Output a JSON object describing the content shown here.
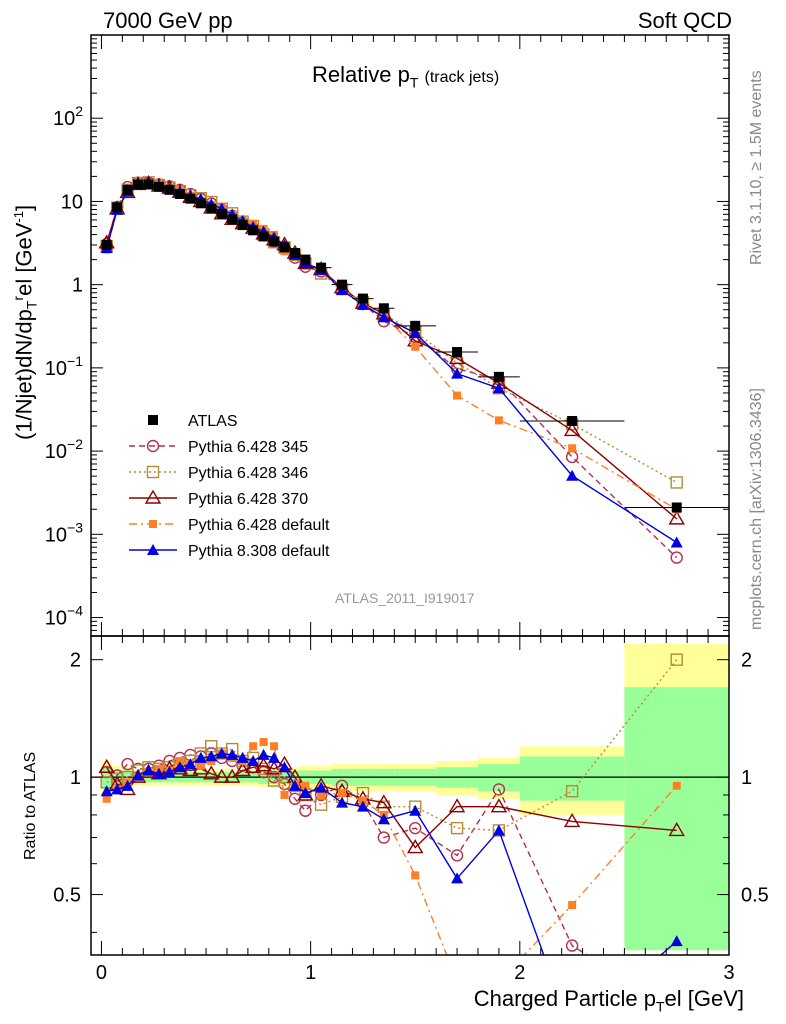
{
  "header": {
    "left": "7000 GeV pp",
    "right": "Soft QCD"
  },
  "title": {
    "main": "Relative p",
    "sub_T": "T",
    "note": "(track jets)"
  },
  "side_labels": {
    "rivet": "Rivet 3.1.10, ≥ 1.5M events",
    "mcplots": "mcplots.cern.ch [arXiv:1306.3436]"
  },
  "analysis": "ATLAS_2011_I919017",
  "axes": {
    "ylabel_top": "(1/Njet)dN/dp",
    "ylabel_bottom": "Ratio to ATLAS",
    "xlabel": "Charged Particle p",
    "xlabel_tail": "el [GeV]"
  },
  "colors": {
    "ATLAS": "#000000",
    "p345": "#b03050",
    "p346": "#b58a3a",
    "p370": "#8b0000",
    "p6def": "#ff7f24",
    "p8def": "#0000e0",
    "band_yellow": "#ffff99",
    "band_green": "#99ff99"
  },
  "chart_data": {
    "type": "line",
    "xlim": [
      -0.05,
      3.0
    ],
    "ylim_top": [
      6e-05,
      1000
    ],
    "ylim_bottom": [
      0.35,
      2.3
    ],
    "log_y_top": true,
    "x_ticks": [
      0,
      1,
      2,
      3
    ],
    "y_ticks_top": [
      "10^{-4}",
      "10^{-3}",
      "10^{-2}",
      "10^{-1}",
      "1",
      "10",
      "10^{2}"
    ],
    "y_ticks_bottom": [
      "0.5",
      "1",
      "2"
    ],
    "x": [
      0.025,
      0.075,
      0.125,
      0.175,
      0.225,
      0.275,
      0.325,
      0.375,
      0.425,
      0.475,
      0.525,
      0.575,
      0.625,
      0.675,
      0.725,
      0.775,
      0.825,
      0.875,
      0.925,
      0.975,
      1.05,
      1.15,
      1.25,
      1.35,
      1.5,
      1.7,
      1.9,
      2.25,
      2.75
    ],
    "bin_edges": [
      0,
      0.05,
      0.1,
      0.15,
      0.2,
      0.25,
      0.3,
      0.35,
      0.4,
      0.45,
      0.5,
      0.55,
      0.6,
      0.65,
      0.7,
      0.75,
      0.8,
      0.85,
      0.9,
      0.95,
      1.0,
      1.1,
      1.2,
      1.3,
      1.4,
      1.6,
      1.8,
      2.0,
      2.5,
      3.0
    ],
    "atlas": [
      3.0,
      8.5,
      13.8,
      16.0,
      16.0,
      15.0,
      13.8,
      12.3,
      10.8,
      9.5,
      8.2,
      7.1,
      6.1,
      5.2,
      4.5,
      3.8,
      3.3,
      2.8,
      2.4,
      2.0,
      1.6,
      1.0,
      0.68,
      0.52,
      0.32,
      0.155,
      0.078,
      0.023,
      0.0021
    ],
    "band_yellow": [
      0.1,
      0.07,
      0.06,
      0.05,
      0.05,
      0.05,
      0.05,
      0.05,
      0.05,
      0.05,
      0.05,
      0.05,
      0.05,
      0.05,
      0.05,
      0.06,
      0.06,
      0.06,
      0.06,
      0.07,
      0.07,
      0.08,
      0.08,
      0.08,
      0.08,
      0.1,
      0.12,
      0.2,
      1.2
    ],
    "band_green": [
      0.06,
      0.04,
      0.04,
      0.03,
      0.03,
      0.03,
      0.03,
      0.03,
      0.03,
      0.03,
      0.03,
      0.03,
      0.03,
      0.03,
      0.03,
      0.04,
      0.04,
      0.04,
      0.04,
      0.04,
      0.04,
      0.05,
      0.05,
      0.05,
      0.05,
      0.06,
      0.08,
      0.13,
      0.7
    ],
    "series": [
      {
        "name": "Pythia 6.428 345",
        "key": "p345",
        "style": "dashed",
        "marker": "circle-open",
        "ratio": [
          1.03,
          1.01,
          1.08,
          1.05,
          1.05,
          1.07,
          1.1,
          1.12,
          1.14,
          1.13,
          1.15,
          1.12,
          1.1,
          1.07,
          1.06,
          1.03,
          1.0,
          0.96,
          0.88,
          0.82,
          0.9,
          0.95,
          0.86,
          0.7,
          0.74,
          0.63,
          0.93,
          0.37,
          0.25
        ]
      },
      {
        "name": "Pythia 6.428 346",
        "key": "p346",
        "style": "dotted",
        "marker": "square-open",
        "ratio": [
          0.97,
          0.99,
          1.0,
          1.04,
          1.06,
          1.05,
          1.06,
          1.08,
          1.1,
          1.15,
          1.2,
          1.15,
          1.18,
          1.1,
          1.12,
          1.05,
          0.98,
          1.0,
          0.95,
          0.9,
          0.85,
          0.89,
          0.91,
          0.84,
          0.84,
          0.74,
          0.73,
          0.92,
          2.0
        ]
      },
      {
        "name": "Pythia 6.428 370",
        "key": "p370",
        "style": "solid",
        "marker": "triangle-open",
        "ratio": [
          1.06,
          0.96,
          0.93,
          1.0,
          1.03,
          1.02,
          1.05,
          1.05,
          1.04,
          1.05,
          1.02,
          1.0,
          1.0,
          1.04,
          1.06,
          1.07,
          1.05,
          1.08,
          1.0,
          0.9,
          0.95,
          0.92,
          0.88,
          0.86,
          0.66,
          0.84,
          0.84,
          0.77,
          0.73
        ]
      },
      {
        "name": "Pythia 6.428 default",
        "key": "p6def",
        "style": "dashdot",
        "marker": "square-filled",
        "ratio": [
          0.88,
          0.93,
          0.97,
          1.0,
          1.03,
          1.05,
          1.04,
          1.1,
          1.08,
          1.07,
          1.1,
          1.15,
          1.12,
          1.1,
          1.2,
          1.23,
          1.2,
          0.9,
          0.96,
          0.95,
          0.9,
          0.91,
          0.87,
          0.8,
          0.56,
          0.3,
          0.3,
          0.47,
          0.95
        ]
      },
      {
        "name": "Pythia 8.308 default",
        "key": "p8def",
        "style": "solid",
        "marker": "triangle-filled",
        "ratio": [
          0.92,
          0.93,
          0.95,
          1.01,
          1.04,
          1.02,
          1.03,
          1.06,
          1.08,
          1.12,
          1.13,
          1.15,
          1.14,
          1.12,
          1.1,
          1.14,
          1.12,
          1.06,
          0.95,
          0.91,
          0.94,
          0.86,
          0.84,
          0.78,
          0.82,
          0.55,
          0.73,
          0.22,
          0.38
        ]
      }
    ]
  }
}
